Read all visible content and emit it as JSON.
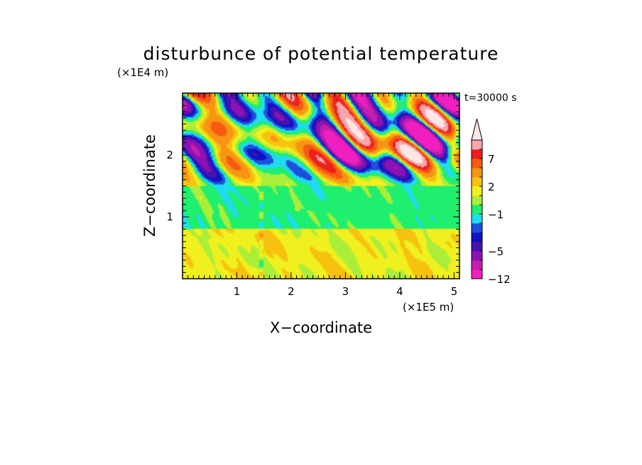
{
  "chart_data": {
    "type": "heatmap",
    "title": "disturbunce of potential temperature",
    "xlabel": "X−coordinate",
    "ylabel": "Z−coordinate",
    "x_unit": "(×1E5 m)",
    "y_unit": "(×1E4 m)",
    "time_label": "t=30000 s",
    "xlim": [
      0,
      5.1
    ],
    "ylim": [
      0,
      3.0
    ],
    "x_ticks": [
      1,
      2,
      3,
      4,
      5
    ],
    "x_tick_labels": [
      "1",
      "2",
      "3",
      "4",
      "5"
    ],
    "y_ticks": [
      1,
      2
    ],
    "y_tick_labels": [
      "1",
      "2"
    ],
    "colorbar": {
      "levels": [
        -12,
        -9,
        -7,
        -5,
        -4,
        -3,
        -2,
        -1,
        0,
        1,
        2,
        3,
        5,
        7,
        9,
        12
      ],
      "labels": [
        {
          "level": -12,
          "text": "−12"
        },
        {
          "level": -5,
          "text": "−5"
        },
        {
          "level": -1,
          "text": "−1"
        },
        {
          "level": 2,
          "text": "2"
        },
        {
          "level": 7,
          "text": "7"
        }
      ],
      "colors": [
        "#f21fc0",
        "#c31fae",
        "#8c12b4",
        "#4812b0",
        "#1212c4",
        "#1e50dc",
        "#1fdcf0",
        "#1fee6e",
        "#aaee3a",
        "#f0f01e",
        "#f7c20f",
        "#f79414",
        "#f65b12",
        "#ee1e1e",
        "#f7a6aa"
      ],
      "extend_top_color": "#fde6e6"
    },
    "field_description_bands": [
      {
        "z_range": [
          0,
          0.8
        ],
        "dominant_value": 1.5
      },
      {
        "z_range": [
          0.8,
          1.5
        ],
        "dominant_value": -0.5
      },
      {
        "z_range": [
          1.5,
          3.0
        ],
        "dominant_value": 0.0,
        "amplitude": 8
      }
    ]
  }
}
